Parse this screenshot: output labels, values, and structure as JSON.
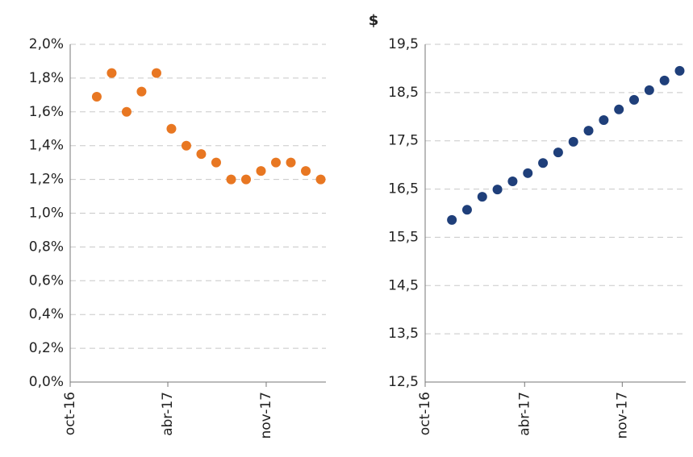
{
  "chart_data": [
    {
      "type": "scatter",
      "color": "#e87722",
      "grid": true,
      "x": [
        0,
        1,
        2,
        3,
        4,
        5,
        6,
        7,
        8,
        9,
        10,
        11,
        12,
        13,
        14,
        15
      ],
      "values": [
        1.69,
        1.83,
        1.6,
        1.72,
        1.83,
        1.5,
        1.4,
        1.35,
        1.3,
        1.2,
        1.2,
        1.25,
        1.3,
        1.3,
        1.25,
        1.2
      ],
      "xlim": [
        -1.78,
        15.35
      ],
      "xticks": [
        {
          "value": -1.78,
          "label": "oct-16"
        },
        {
          "value": 4.76,
          "label": "abr-17"
        },
        {
          "value": 11.35,
          "label": "nov-17"
        }
      ],
      "ylim": [
        0,
        2.0
      ],
      "yticks": [
        {
          "value": 0,
          "label": "0,0%"
        },
        {
          "value": 0.2,
          "label": "0,2%"
        },
        {
          "value": 0.4,
          "label": "0,4%"
        },
        {
          "value": 0.6,
          "label": "0,6%"
        },
        {
          "value": 0.8,
          "label": "0,8%"
        },
        {
          "value": 1.0,
          "label": "1,0%"
        },
        {
          "value": 1.2,
          "label": "1,2%"
        },
        {
          "value": 1.4,
          "label": "1,4%"
        },
        {
          "value": 1.6,
          "label": "1,6%"
        },
        {
          "value": 1.8,
          "label": "1,8%"
        },
        {
          "value": 2.0,
          "label": "2,0%"
        }
      ]
    },
    {
      "type": "scatter",
      "color": "#1f3f7a",
      "grid": true,
      "y_label": "$",
      "x": [
        0,
        1,
        2,
        3,
        4,
        5,
        6,
        7,
        8,
        9,
        10,
        11,
        12,
        13,
        14,
        15
      ],
      "values": [
        15.86,
        16.07,
        16.34,
        16.49,
        16.66,
        16.83,
        17.04,
        17.26,
        17.48,
        17.71,
        17.93,
        18.15,
        18.35,
        18.55,
        18.75,
        18.95
      ],
      "xlim": [
        -1.76,
        15.4
      ],
      "xticks": [
        {
          "value": -1.76,
          "label": "oct-16"
        },
        {
          "value": 4.79,
          "label": "abr-17"
        },
        {
          "value": 11.22,
          "label": "nov-17"
        }
      ],
      "ylim": [
        12.5,
        19.5
      ],
      "yticks": [
        {
          "value": 12.5,
          "label": "12,5"
        },
        {
          "value": 13.5,
          "label": "13,5"
        },
        {
          "value": 14.5,
          "label": "14,5"
        },
        {
          "value": 15.5,
          "label": "15,5"
        },
        {
          "value": 16.5,
          "label": "16,5"
        },
        {
          "value": 17.5,
          "label": "17,5"
        },
        {
          "value": 18.5,
          "label": "18,5"
        },
        {
          "value": 19.5,
          "label": "19,5"
        }
      ]
    }
  ]
}
